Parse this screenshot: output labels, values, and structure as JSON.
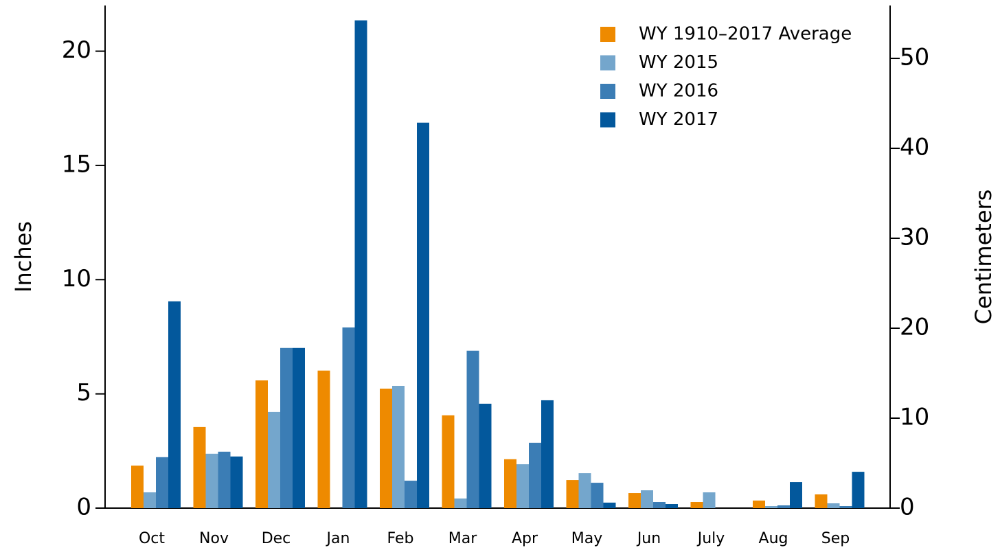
{
  "chart_data": {
    "type": "bar",
    "categories": [
      "Oct",
      "Nov",
      "Dec",
      "Jan",
      "Feb",
      "Mar",
      "Apr",
      "May",
      "Jun",
      "July",
      "Aug",
      "Sep"
    ],
    "series": [
      {
        "name": "WY 1910–2017 Average",
        "color": "#ee8a00",
        "values": [
          1.86,
          3.55,
          5.59,
          6.02,
          5.23,
          4.06,
          2.14,
          1.23,
          0.66,
          0.27,
          0.33,
          0.6
        ]
      },
      {
        "name": "WY 2015",
        "color": "#74a6cc",
        "values": [
          0.69,
          2.38,
          4.21,
          null,
          5.35,
          0.42,
          1.92,
          1.53,
          0.78,
          0.69,
          0.09,
          0.21
        ]
      },
      {
        "name": "WY 2016",
        "color": "#3b7db5",
        "values": [
          2.23,
          2.47,
          7.01,
          7.91,
          1.2,
          6.89,
          2.86,
          1.11,
          0.27,
          null,
          0.12,
          0.09
        ]
      },
      {
        "name": "WY 2017",
        "color": "#03589c",
        "values": [
          9.05,
          2.26,
          7.01,
          21.35,
          16.87,
          4.57,
          4.72,
          0.24,
          0.18,
          null,
          1.14,
          1.59
        ]
      }
    ],
    "ylabel": "Inches",
    "y2label": "Centimeters",
    "ylim": [
      0,
      22
    ],
    "yticks": [
      0,
      5,
      10,
      15,
      20
    ],
    "y2lim": [
      0,
      55.88
    ],
    "y2ticks": [
      0,
      10,
      20,
      30,
      40,
      50
    ],
    "legend": "upper right"
  }
}
